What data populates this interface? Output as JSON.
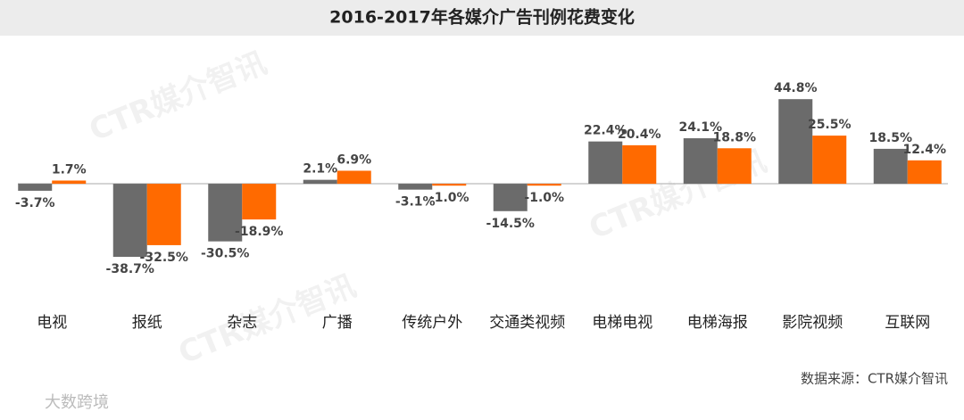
{
  "chart_data": {
    "type": "bar",
    "title": "2016-2017年各媒介广告刊例花费变化",
    "source": "数据来源：CTR媒介智讯",
    "watermark": "CTR媒介智讯",
    "logo": "大数跨境",
    "categories": [
      "电视",
      "报纸",
      "杂志",
      "广播",
      "传统户外",
      "交通类视频",
      "电梯电视",
      "电梯海报",
      "影院视频",
      "互联网"
    ],
    "series": [
      {
        "color": "#6b6b6b",
        "values": [
          -3.7,
          -38.7,
          -30.5,
          2.1,
          -3.1,
          -14.5,
          22.4,
          24.1,
          44.8,
          18.5
        ],
        "value_labels": [
          "-3.7%",
          "-38.7%",
          "-30.5%",
          "2.1%",
          "-3.1%",
          "-14.5%",
          "22.4%",
          "24.1%",
          "44.8%",
          "18.5%"
        ]
      },
      {
        "color": "#ff6a00",
        "values": [
          1.7,
          -32.5,
          -18.9,
          6.9,
          -1.0,
          -1.0,
          20.4,
          18.8,
          25.5,
          12.4
        ],
        "value_labels": [
          "1.7%",
          "-32.5%",
          "-18.9%",
          "6.9%",
          "-1.0%",
          "-1.0%",
          "20.4%",
          "18.8%",
          "25.5%",
          "12.4%"
        ]
      }
    ],
    "ylim": [
      -50,
      60
    ]
  }
}
